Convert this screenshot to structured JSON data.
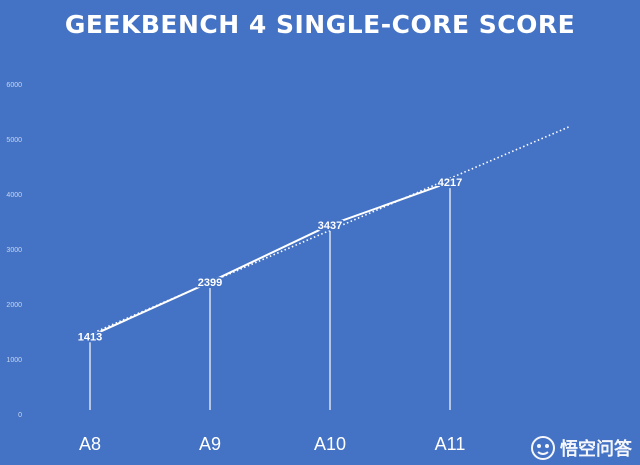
{
  "chart_data": {
    "type": "line",
    "title": "GEEKBENCH 4 SINGLE-CORE SCORE",
    "categories": [
      "A8",
      "A9",
      "A10",
      "A11"
    ],
    "series": [
      {
        "values": [
          1413,
          2399,
          3437,
          4217
        ]
      }
    ],
    "data_labels": [
      "1413",
      "2399",
      "3437",
      "4217"
    ],
    "trendline": {
      "style": "dotted",
      "extends_forward": 1
    },
    "y_ticks": [
      0,
      1000,
      2000,
      3000,
      4000,
      5000,
      6000
    ],
    "ylim": [
      0,
      6000
    ],
    "xlabel": "",
    "ylabel": "",
    "grid": false,
    "legend": "none",
    "colors": {
      "background": "#4472c4",
      "line": "#ffffff",
      "text": "#ffffff",
      "tick_text": "#c9d7f0"
    }
  },
  "watermark": {
    "text": "悟空问答"
  }
}
